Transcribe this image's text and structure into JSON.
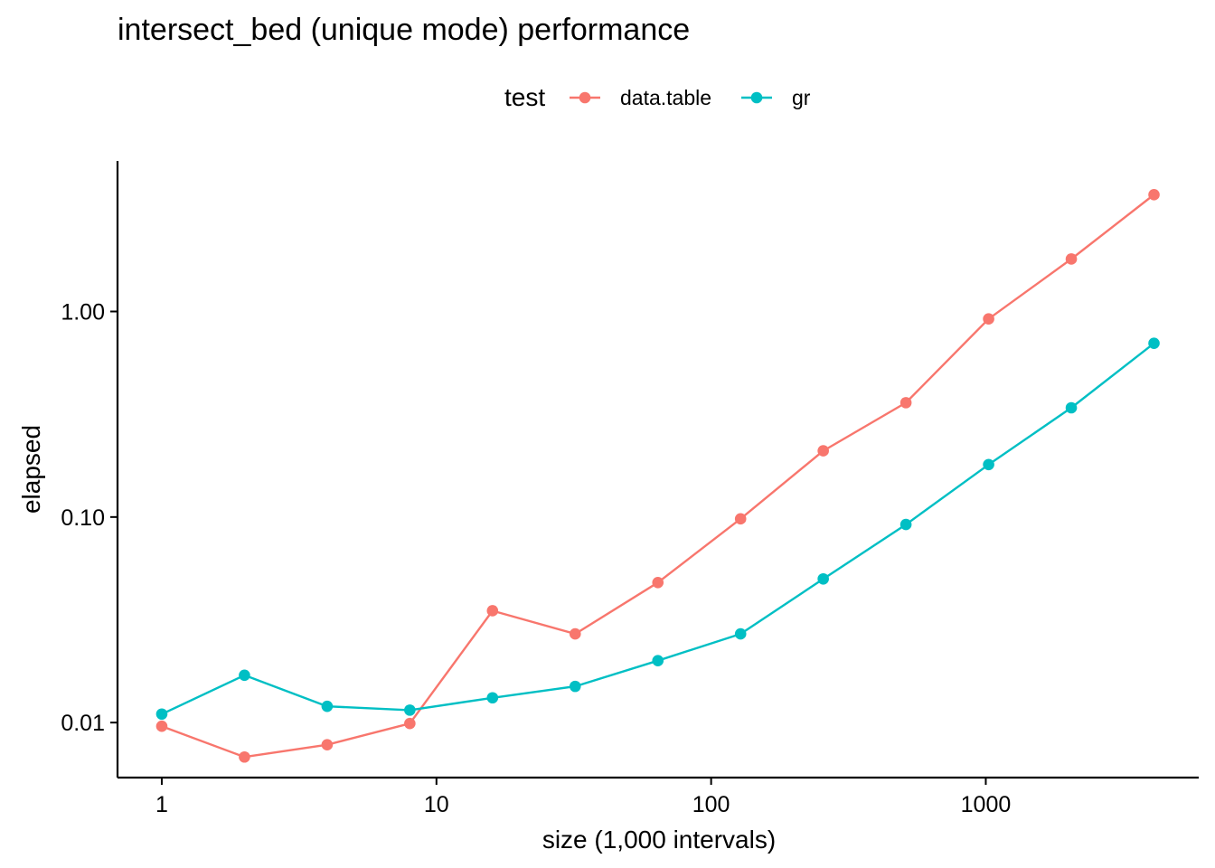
{
  "chart_data": {
    "type": "line",
    "title": "intersect_bed (unique mode) performance",
    "xlabel": "size (1,000 intervals)",
    "ylabel": "elapsed",
    "x_scale": "log10",
    "y_scale": "log10",
    "xlim": [
      0.69,
      5960
    ],
    "ylim": [
      0.0054,
      5.4
    ],
    "x_ticks": [
      1,
      10,
      100,
      1000
    ],
    "x_tick_labels": [
      "1",
      "10",
      "100",
      "1000"
    ],
    "y_ticks": [
      0.01,
      0.1,
      1
    ],
    "y_tick_labels": [
      "0.01",
      "0.10",
      "1.00"
    ],
    "grid": false,
    "legend": {
      "title": "test",
      "position": "top"
    },
    "x": [
      1,
      2,
      4,
      8,
      16,
      32,
      64,
      128,
      256,
      512,
      1024,
      2048,
      4096
    ],
    "series": [
      {
        "name": "data.table",
        "color": "#F8766D",
        "values": [
          0.0096,
          0.0068,
          0.0078,
          0.0099,
          0.035,
          0.027,
          0.048,
          0.098,
          0.21,
          0.36,
          0.92,
          1.8,
          3.7
        ]
      },
      {
        "name": "gr",
        "color": "#00BFC4",
        "values": [
          0.011,
          0.017,
          0.012,
          0.0115,
          0.0132,
          0.015,
          0.02,
          0.027,
          0.05,
          0.092,
          0.18,
          0.34,
          0.7
        ]
      }
    ]
  }
}
